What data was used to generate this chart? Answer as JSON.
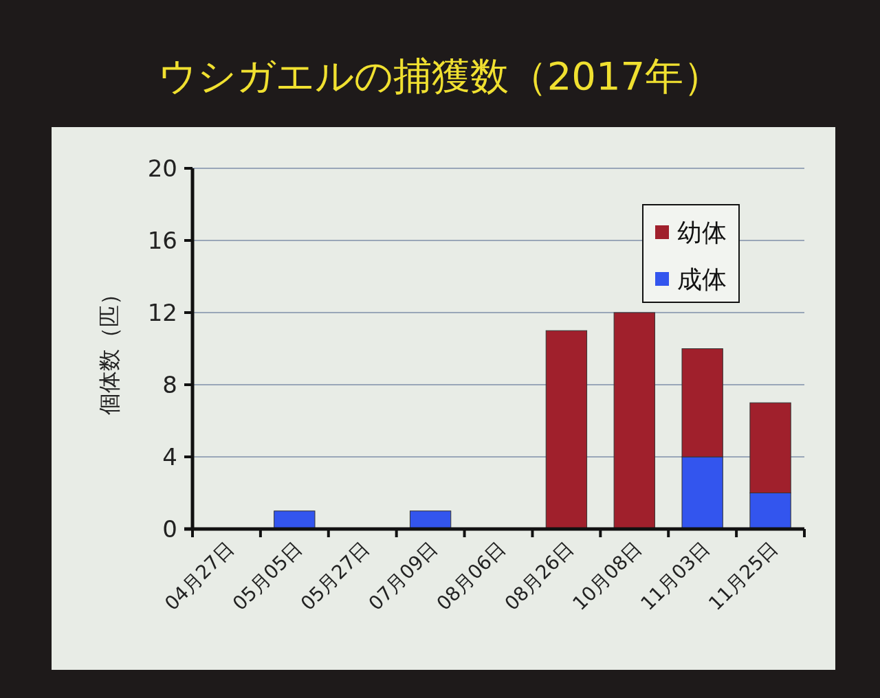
{
  "chart_data": {
    "type": "bar",
    "title": "ウシガエルの捕獲数（2017年）",
    "ylabel": "個体数（匹）",
    "categories": [
      "04月27日",
      "05月05日",
      "05月27日",
      "07月09日",
      "08月06日",
      "08月26日",
      "10月08日",
      "11月03日",
      "11月25日"
    ],
    "series": [
      {
        "name": "成体",
        "color": "#3355ee",
        "values": [
          0,
          1,
          0,
          1,
          0,
          0,
          0,
          4,
          2
        ]
      },
      {
        "name": "幼体",
        "color": "#a0202c",
        "values": [
          0,
          0,
          0,
          0,
          0,
          11,
          12,
          6,
          5
        ]
      }
    ],
    "stacked": true,
    "ylim": [
      0,
      20
    ],
    "yticks": [
      0,
      4,
      8,
      12,
      16,
      20
    ],
    "grid": "y",
    "legend": "top right"
  }
}
